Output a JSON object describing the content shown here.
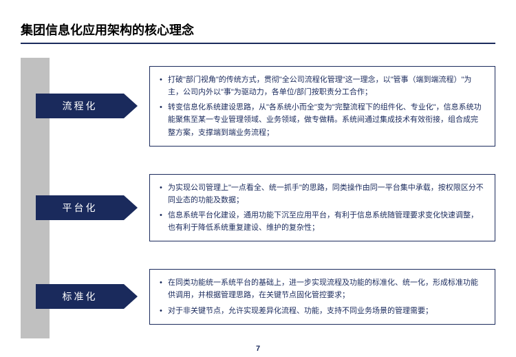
{
  "title": "集团信息化应用架构的核心理念",
  "colors": {
    "primary": "#1a2a5c",
    "gray_bar": "#c0c0c0",
    "background": "#ffffff",
    "title_text": "#000000"
  },
  "typography": {
    "title_fontsize": 18,
    "label_fontsize": 14,
    "body_fontsize": 11,
    "font_family": "Microsoft YaHei"
  },
  "sections": [
    {
      "label": "流程化",
      "bullets": [
        "打破\"部门视角\"的传统方式，贯彻\"全公司流程化管理\"这一理念，以\"管事（端到端流程）\"为主，公司内外以\"事\"为驱动力，各单位/部门按职责分工合作；",
        "转变信息化系统建设思路，从\"各系统小而全\"变为\"完整流程下的组件化、专业化\"，信息系统功能聚焦至某一专业管理领域、业务领域，做专做精。系统间通过集成技术有效衔接，组合成完整方案，支撑端到端业务流程；"
      ]
    },
    {
      "label": "平台化",
      "bullets": [
        "为实现公司管理上\"一点看全、统一抓手\"的思路，同类操作由同一平台集中承载，按权限区分不同业态的功能及数据；",
        "信息系统平台化建设，通用功能下沉至应用平台，有利于信息系统随管理要求变化快速调整，也有利于降低系统重复建设、维护的复杂性；"
      ]
    },
    {
      "label": "标准化",
      "bullets": [
        "在同类功能统一系统平台的基础上，进一步实现流程及功能的标准化、统一化，形成标准功能供调用，并根据管理思路，在关键节点固化管控要求；",
        "对于非关键节点，允许实现差异化流程、功能，支持不同业务场景的管理需要；"
      ]
    }
  ],
  "page_number": "7"
}
